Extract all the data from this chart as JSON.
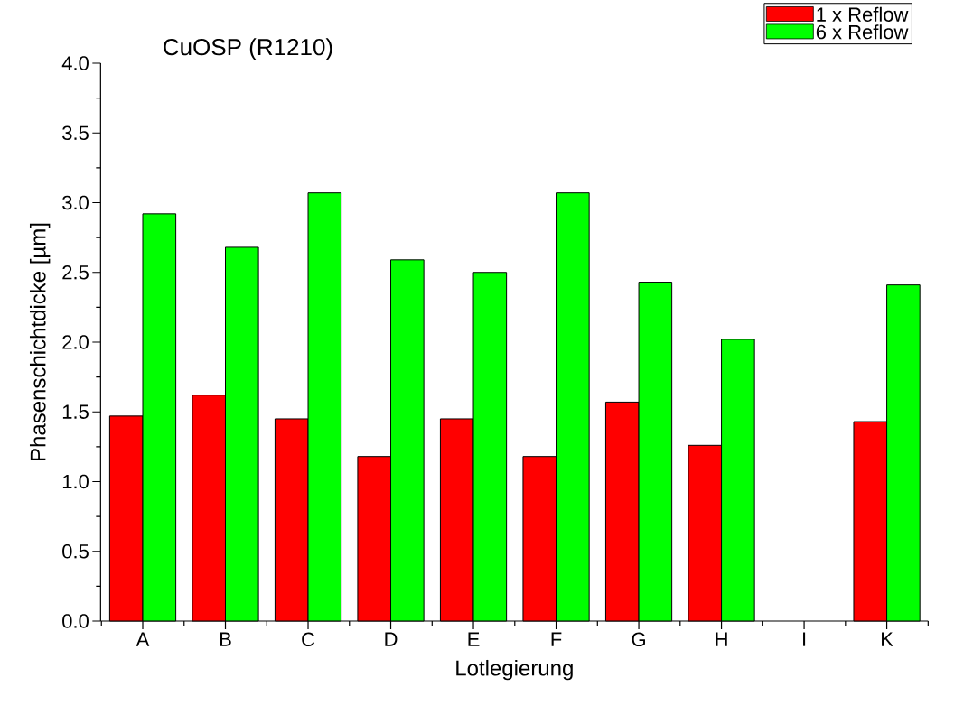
{
  "chart_data": {
    "type": "bar",
    "title": "CuOSP (R1210)",
    "xlabel": "Lotlegierung",
    "ylabel": "Phasenschichtdicke [µm]",
    "categories": [
      "A",
      "B",
      "C",
      "D",
      "E",
      "F",
      "G",
      "H",
      "I",
      "K"
    ],
    "series": [
      {
        "name": "1 x Reflow",
        "color": "#ff0000",
        "values": [
          1.47,
          1.62,
          1.45,
          1.18,
          1.45,
          1.18,
          1.57,
          1.26,
          null,
          1.43
        ]
      },
      {
        "name": "6 x Reflow",
        "color": "#00ff00",
        "values": [
          2.92,
          2.68,
          3.07,
          2.59,
          2.5,
          3.07,
          2.43,
          2.02,
          null,
          2.41
        ]
      }
    ],
    "ylim": [
      0,
      4.0
    ],
    "yticks": [
      {
        "value": 0,
        "label": "0.0"
      },
      {
        "value": 0.5,
        "label": "0.5"
      },
      {
        "value": 1.0,
        "label": "1.0"
      },
      {
        "value": 1.5,
        "label": "1.5"
      },
      {
        "value": 2.0,
        "label": "2.0"
      },
      {
        "value": 2.5,
        "label": "2.5"
      },
      {
        "value": 3.0,
        "label": "3.0"
      },
      {
        "value": 3.5,
        "label": "3.5"
      },
      {
        "value": 4.0,
        "label": "4.0"
      }
    ],
    "legend": "top right",
    "grid": false
  }
}
